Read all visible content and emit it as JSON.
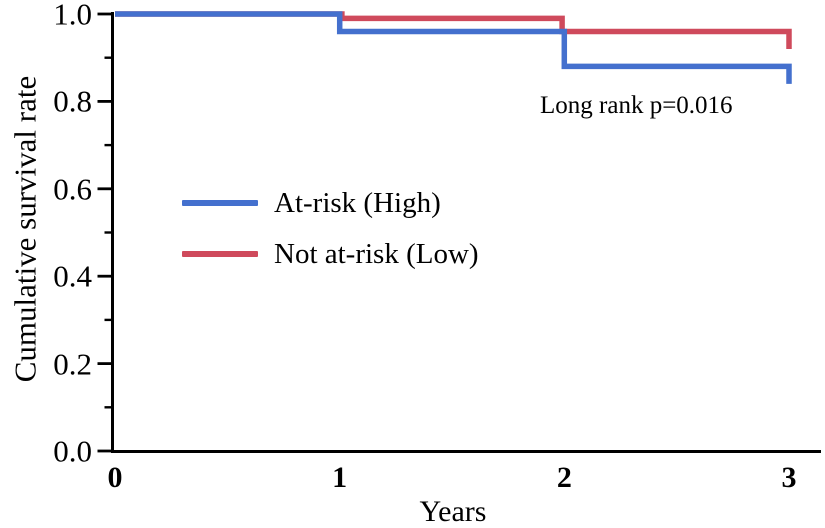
{
  "chart_data": {
    "type": "line",
    "variant": "kaplan-meier-step",
    "title": "",
    "xlabel": "Years",
    "ylabel": "Cumulative survival rate",
    "xlim": [
      0,
      3
    ],
    "ylim": [
      0.0,
      1.0
    ],
    "xticks": [
      0,
      1,
      2,
      3
    ],
    "xtick_labels": [
      "0",
      "1",
      "2",
      "3"
    ],
    "yticks": [
      0.0,
      0.2,
      0.4,
      0.6,
      0.8,
      1.0
    ],
    "ytick_labels": [
      "0.0",
      "0.2",
      "0.4",
      "0.6",
      "0.8",
      "1.0"
    ],
    "minor_yticks": [
      0.1,
      0.3,
      0.5,
      0.7,
      0.9
    ],
    "grid": false,
    "legend_position": "inside-center-left",
    "annotation": {
      "text": "Long rank p=0.016",
      "x": 2.3,
      "y": 0.76
    },
    "axis_color": "#000000",
    "background": "#ffffff",
    "series": [
      {
        "name": "At-risk (High)",
        "color": "#4470ce",
        "points": [
          [
            0,
            1.0
          ],
          [
            1.0,
            1.0
          ],
          [
            1.0,
            0.96
          ],
          [
            2.0,
            0.96
          ],
          [
            2.0,
            0.88
          ],
          [
            3.0,
            0.88
          ],
          [
            3.0,
            0.84
          ]
        ]
      },
      {
        "name": "Not at-risk (Low)",
        "color": "#cf4a5c",
        "points": [
          [
            0,
            1.0
          ],
          [
            1.01,
            1.0
          ],
          [
            1.01,
            0.99
          ],
          [
            1.99,
            0.99
          ],
          [
            1.99,
            0.96
          ],
          [
            3.0,
            0.96
          ],
          [
            3.0,
            0.92
          ]
        ]
      }
    ]
  }
}
